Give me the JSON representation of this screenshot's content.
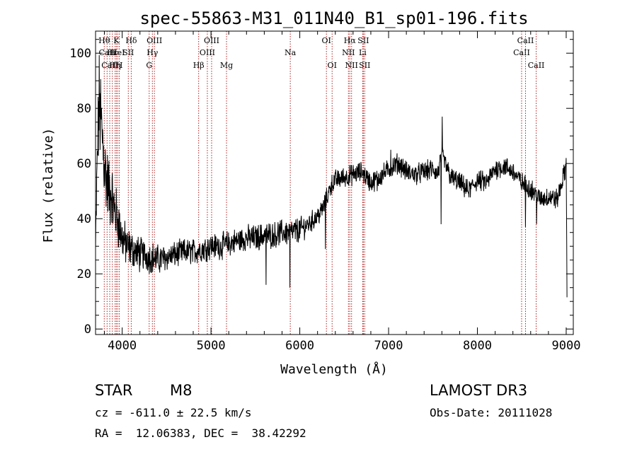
{
  "chart_data": {
    "type": "line",
    "title": "spec-55863-M31_011N40_B1_sp01-196.fits",
    "xlabel": "Wavelength (Å)",
    "ylabel": "Flux (relative)",
    "xlim": [
      3700,
      9080
    ],
    "ylim": [
      -2,
      108
    ],
    "x_ticks": [
      4000,
      5000,
      6000,
      7000,
      8000,
      9000
    ],
    "y_ticks": [
      0,
      20,
      40,
      60,
      80,
      100
    ],
    "spectrum_anchors": {
      "x": [
        3700,
        3720,
        3740,
        3760,
        3780,
        3800,
        3820,
        3840,
        3860,
        3880,
        3900,
        3930,
        3960,
        4000,
        4050,
        4100,
        4150,
        4200,
        4250,
        4300,
        4350,
        4400,
        4500,
        4600,
        4700,
        4800,
        4900,
        5000,
        5100,
        5200,
        5300,
        5400,
        5500,
        5600,
        5700,
        5800,
        5900,
        6000,
        6100,
        6200,
        6250,
        6300,
        6350,
        6400,
        6500,
        6600,
        6700,
        6800,
        6900,
        7000,
        7100,
        7150,
        7200,
        7300,
        7400,
        7500,
        7550,
        7600,
        7700,
        7800,
        7900,
        8000,
        8100,
        8200,
        8300,
        8400,
        8500,
        8600,
        8700,
        8800,
        8900,
        9000,
        9010
      ],
      "y": [
        28,
        62,
        82,
        75,
        68,
        60,
        55,
        52,
        48,
        50,
        44,
        42,
        38,
        33,
        30,
        29,
        28,
        27,
        27,
        26,
        26,
        25,
        26,
        27,
        28,
        28,
        29,
        30,
        30,
        31,
        32,
        33,
        33,
        34,
        34,
        35,
        35,
        36,
        38,
        41,
        43,
        47,
        52,
        54,
        55,
        56,
        57,
        53,
        55,
        58,
        60,
        59,
        57,
        56,
        57,
        58,
        56,
        63,
        55,
        53,
        50,
        54,
        53,
        58,
        59,
        57,
        53,
        51,
        47,
        48,
        47,
        59,
        8
      ],
      "noise_amplitude": [
        8,
        14,
        20,
        20,
        18,
        16,
        15,
        14,
        14,
        12,
        12,
        11,
        10,
        9,
        8,
        7,
        7,
        7,
        6,
        6,
        6,
        6,
        5,
        5,
        5,
        5,
        5,
        5,
        5,
        5,
        5,
        5,
        5,
        5,
        5,
        5,
        5,
        5,
        4,
        4,
        4,
        4,
        4,
        4,
        4,
        4,
        4,
        4,
        4,
        4,
        4,
        4,
        4,
        4,
        4,
        4,
        4,
        4,
        4,
        4,
        4,
        4,
        4,
        4,
        4,
        4,
        4,
        4,
        4,
        4,
        4,
        4,
        4
      ]
    },
    "spikes": [
      {
        "x": 7605,
        "y": 77
      },
      {
        "x": 7590,
        "y": 38
      },
      {
        "x": 5890,
        "y": 15
      },
      {
        "x": 5620,
        "y": 16
      },
      {
        "x": 6290,
        "y": 29
      },
      {
        "x": 6870,
        "y": 50
      },
      {
        "x": 7025,
        "y": 65
      },
      {
        "x": 8540,
        "y": 37
      },
      {
        "x": 8665,
        "y": 38
      },
      {
        "x": 9000,
        "y": 62
      }
    ],
    "line_markers": [
      {
        "label": "Hθ",
        "x": 3798,
        "row": 0
      },
      {
        "label": "CaII",
        "x": 3830,
        "row": 1
      },
      {
        "label": "CaII",
        "x": 3860,
        "row": 2
      },
      {
        "label": "Hε",
        "x": 3889,
        "row": 1
      },
      {
        "label": "Hη",
        "x": 3920,
        "row": 2
      },
      {
        "label": "K",
        "x": 3934,
        "row": 0
      },
      {
        "label": "HeI",
        "x": 3949,
        "row": 1
      },
      {
        "label": "H",
        "x": 3968,
        "row": 2
      },
      {
        "label": "SII",
        "x": 4069,
        "row": 1
      },
      {
        "label": "Hδ",
        "x": 4102,
        "row": 0
      },
      {
        "label": "G",
        "x": 4304,
        "row": 2
      },
      {
        "label": "Hγ",
        "x": 4340,
        "row": 1
      },
      {
        "label": "OIII",
        "x": 4363,
        "row": 0
      },
      {
        "label": "Hβ",
        "x": 4861,
        "row": 2
      },
      {
        "label": "OIII",
        "x": 4959,
        "row": 1
      },
      {
        "label": "OIII",
        "x": 5007,
        "row": 0
      },
      {
        "label": "Mg",
        "x": 5175,
        "row": 2
      },
      {
        "label": "Na",
        "x": 5893,
        "row": 1
      },
      {
        "label": "OI",
        "x": 6300,
        "row": 0
      },
      {
        "label": "OI",
        "x": 6364,
        "row": 2
      },
      {
        "label": "NII",
        "x": 6548,
        "row": 1
      },
      {
        "label": "Hα",
        "x": 6563,
        "row": 0
      },
      {
        "label": "NII",
        "x": 6583,
        "row": 2
      },
      {
        "label": "Li",
        "x": 6708,
        "row": 1
      },
      {
        "label": "SII",
        "x": 6716,
        "row": 0
      },
      {
        "label": "SII",
        "x": 6731,
        "row": 2
      },
      {
        "label": "CaII",
        "x": 8498,
        "row": 1
      },
      {
        "label": "CaII",
        "x": 8542,
        "row": 0
      },
      {
        "label": "CaII",
        "x": 8662,
        "row": 2
      }
    ]
  },
  "info": {
    "object_class": "STAR",
    "subclass": "M8",
    "survey": "LAMOST DR3",
    "redshift": "cz = -611.0 ± 22.5 km/s",
    "obs_date": "Obs-Date: 20111028",
    "coords": "RA =  12.06383, DEC =  38.42292"
  },
  "colors": {
    "spectrum": "#000000",
    "marker_line": "#b22222",
    "axes": "#000000",
    "background": "#ffffff"
  }
}
